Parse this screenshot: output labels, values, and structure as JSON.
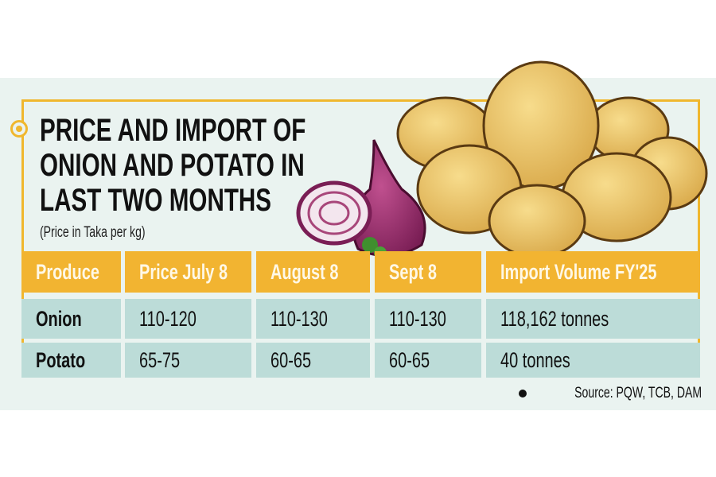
{
  "title_lines": [
    "PRICE AND IMPORT OF",
    "ONION AND POTATO IN",
    "LAST TWO MONTHS"
  ],
  "subtitle": "(Price in Taka per kg)",
  "source": "Source: PQW, TCB, DAM",
  "colors": {
    "accent": "#f2b431",
    "row": "#bcdcd8",
    "background": "#eaf3f0"
  },
  "illustration": "onion-and-potatoes",
  "chart_data": {
    "type": "table",
    "title": "PRICE AND IMPORT OF ONION AND POTATO IN LAST TWO MONTHS",
    "columns": [
      "Produce",
      "Price July 8",
      "August 8",
      "Sept 8",
      "Import Volume FY'25"
    ],
    "rows": [
      [
        "Onion",
        "110-120",
        "110-130",
        "110-130",
        "118,162 tonnes"
      ],
      [
        "Potato",
        "65-75",
        "60-65",
        "60-65",
        "40 tonnes"
      ]
    ]
  }
}
